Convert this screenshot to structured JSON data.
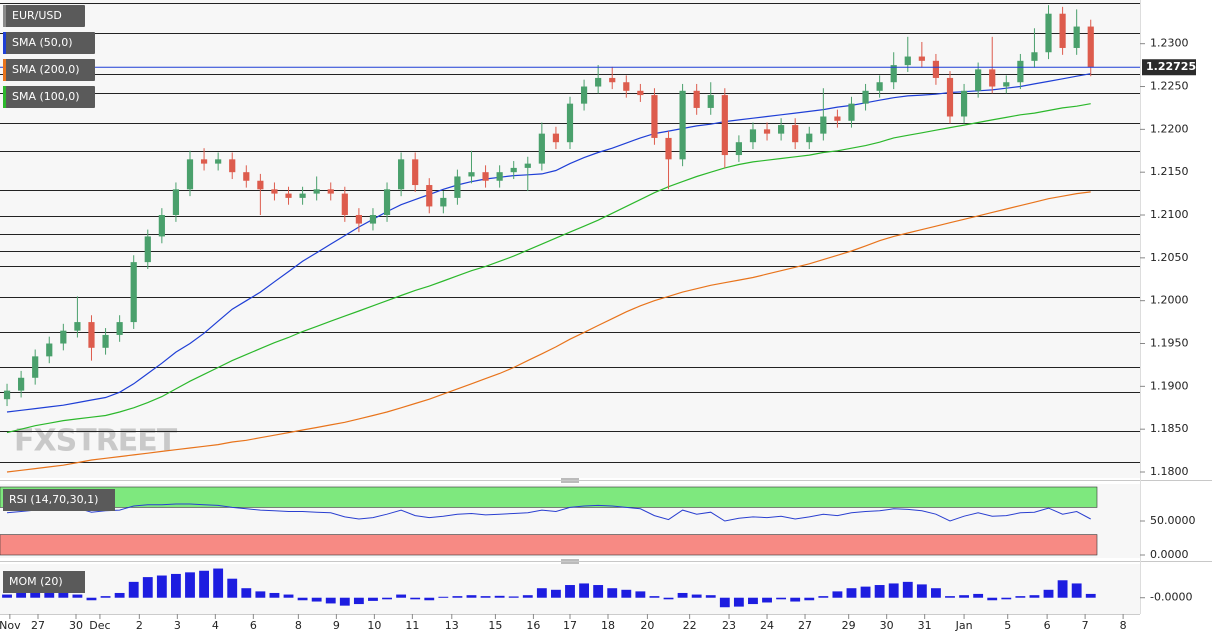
{
  "chart_data": [
    {
      "type": "candlestick",
      "title": "EUR/USD",
      "watermark": "FXSTREET",
      "up_color": "#4aa06c",
      "down_color": "#dd5c4d",
      "open": [
        1.1885,
        1.1895,
        1.191,
        1.1935,
        1.195,
        1.1965,
        1.1975,
        1.1945,
        1.196,
        1.1975,
        1.2045,
        1.2075,
        1.21,
        1.213,
        1.2165,
        1.216,
        1.2165,
        1.215,
        1.214,
        1.213,
        1.2125,
        1.212,
        1.2125,
        1.213,
        1.2125,
        1.21,
        1.209,
        1.21,
        1.213,
        1.2165,
        1.2135,
        1.211,
        1.212,
        1.2145,
        1.215,
        1.214,
        1.215,
        1.2155,
        1.216,
        1.2195,
        1.2185,
        1.223,
        1.225,
        1.226,
        1.2255,
        1.2245,
        1.224,
        1.219,
        1.2165,
        1.2245,
        1.2225,
        1.224,
        1.217,
        1.2185,
        1.22,
        1.2195,
        1.2205,
        1.2185,
        1.2195,
        1.2215,
        1.221,
        1.223,
        1.2245,
        1.2255,
        1.2275,
        1.2285,
        1.228,
        1.226,
        1.2215,
        1.2245,
        1.227,
        1.225,
        1.2255,
        1.228,
        1.229,
        1.2335,
        1.2295,
        1.232
      ],
      "high": [
        1.1903,
        1.1918,
        1.1943,
        1.1958,
        1.1973,
        1.2005,
        1.1983,
        1.1968,
        1.1983,
        1.2053,
        1.2083,
        1.2108,
        1.2138,
        1.2175,
        1.2178,
        1.2173,
        1.2173,
        1.2158,
        1.2148,
        1.2138,
        1.2133,
        1.2133,
        1.2145,
        1.2138,
        1.2133,
        1.2108,
        1.2108,
        1.2138,
        1.2173,
        1.2173,
        1.2143,
        1.2128,
        1.2153,
        1.2175,
        1.2158,
        1.2158,
        1.2163,
        1.2168,
        1.2208,
        1.2203,
        1.2238,
        1.2258,
        1.2275,
        1.2273,
        1.2263,
        1.2253,
        1.2248,
        1.2198,
        1.2253,
        1.2253,
        1.2255,
        1.2248,
        1.2193,
        1.2208,
        1.2208,
        1.2213,
        1.2213,
        1.2203,
        1.2248,
        1.2223,
        1.2238,
        1.2253,
        1.2263,
        1.229,
        1.2308,
        1.2302,
        1.2288,
        1.2268,
        1.2253,
        1.2278,
        1.2308,
        1.2263,
        1.2288,
        1.2318,
        1.2345,
        1.2343,
        1.234,
        1.2328
      ],
      "low": [
        1.1877,
        1.1887,
        1.1902,
        1.1927,
        1.1942,
        1.1957,
        1.193,
        1.1937,
        1.1952,
        1.1967,
        1.2037,
        1.2067,
        1.2092,
        1.2122,
        1.2152,
        1.2152,
        1.2142,
        1.2132,
        1.21,
        1.2117,
        1.2112,
        1.2112,
        1.2117,
        1.2117,
        1.2092,
        1.208,
        1.2082,
        1.2092,
        1.2122,
        1.2127,
        1.2102,
        1.2102,
        1.2112,
        1.2137,
        1.2132,
        1.2132,
        1.2142,
        1.2128,
        1.2152,
        1.2177,
        1.2177,
        1.2222,
        1.2242,
        1.2247,
        1.2237,
        1.2232,
        1.2182,
        1.213,
        1.2157,
        1.2217,
        1.2217,
        1.2155,
        1.2162,
        1.2177,
        1.2187,
        1.2187,
        1.2177,
        1.2177,
        1.2187,
        1.2202,
        1.2202,
        1.2222,
        1.2237,
        1.2247,
        1.2267,
        1.2272,
        1.2252,
        1.2207,
        1.2207,
        1.2237,
        1.2242,
        1.2242,
        1.2247,
        1.2272,
        1.2282,
        1.2287,
        1.2287,
        1.2262
      ],
      "close": [
        1.1895,
        1.191,
        1.1935,
        1.195,
        1.1965,
        1.1975,
        1.1945,
        1.196,
        1.1975,
        1.2045,
        1.2075,
        1.21,
        1.213,
        1.2165,
        1.216,
        1.2165,
        1.215,
        1.214,
        1.213,
        1.2125,
        1.212,
        1.2125,
        1.213,
        1.2125,
        1.21,
        1.209,
        1.21,
        1.213,
        1.2165,
        1.2135,
        1.211,
        1.212,
        1.2145,
        1.215,
        1.214,
        1.215,
        1.2155,
        1.216,
        1.2195,
        1.2185,
        1.223,
        1.225,
        1.226,
        1.2255,
        1.2245,
        1.224,
        1.219,
        1.2165,
        1.2245,
        1.2225,
        1.224,
        1.217,
        1.2185,
        1.22,
        1.2195,
        1.2205,
        1.2185,
        1.2195,
        1.2215,
        1.221,
        1.223,
        1.2245,
        1.2255,
        1.2275,
        1.2285,
        1.228,
        1.226,
        1.2215,
        1.2245,
        1.227,
        1.225,
        1.2255,
        1.228,
        1.229,
        1.2335,
        1.2295,
        1.232,
        1.22725
      ],
      "series": [
        {
          "name": "SMA (50,0)",
          "color": "#1f3fd6",
          "values": [
            1.187,
            1.1872,
            1.1874,
            1.1876,
            1.1878,
            1.1881,
            1.1884,
            1.1887,
            1.1893,
            1.1903,
            1.1915,
            1.1927,
            1.194,
            1.195,
            1.1962,
            1.1976,
            1.199,
            1.2,
            1.201,
            1.2022,
            1.2034,
            1.2046,
            1.2056,
            1.2066,
            1.2076,
            1.2086,
            1.2095,
            1.2104,
            1.2112,
            1.2118,
            1.2124,
            1.213,
            1.2135,
            1.2139,
            1.2142,
            1.2144,
            1.2146,
            1.2147,
            1.2148,
            1.2152,
            1.216,
            1.2167,
            1.2173,
            1.2178,
            1.2184,
            1.219,
            1.2195,
            1.2198,
            1.2201,
            1.2204,
            1.2206,
            1.2209,
            1.2211,
            1.2213,
            1.2215,
            1.2217,
            1.2219,
            1.2221,
            1.2223,
            1.2226,
            1.2228,
            1.2231,
            1.2234,
            1.2237,
            1.2239,
            1.224,
            1.2241,
            1.2243,
            1.2244,
            1.2245,
            1.2246,
            1.2248,
            1.225,
            1.2253,
            1.2256,
            1.2259,
            1.2262,
            1.2265
          ]
        },
        {
          "name": "SMA (200,0)",
          "color": "#e8741c",
          "values": [
            1.18,
            1.1802,
            1.1804,
            1.1806,
            1.1808,
            1.1811,
            1.1814,
            1.1816,
            1.1818,
            1.182,
            1.1822,
            1.1824,
            1.1826,
            1.1828,
            1.183,
            1.1832,
            1.1835,
            1.1837,
            1.184,
            1.1843,
            1.1846,
            1.1849,
            1.1852,
            1.1855,
            1.1858,
            1.1862,
            1.1866,
            1.187,
            1.1875,
            1.188,
            1.1885,
            1.1891,
            1.1897,
            1.1903,
            1.1909,
            1.1915,
            1.1922,
            1.193,
            1.1938,
            1.1946,
            1.1955,
            1.1963,
            1.1971,
            1.1979,
            1.1987,
            1.1994,
            1.2,
            1.2005,
            1.201,
            1.2014,
            1.2018,
            1.2021,
            1.2024,
            1.2027,
            1.2031,
            1.2035,
            1.2039,
            1.2043,
            1.2048,
            1.2053,
            1.2058,
            1.2064,
            1.207,
            1.2075,
            1.2079,
            1.2083,
            1.2087,
            1.2091,
            1.2095,
            1.2099,
            1.2103,
            1.2107,
            1.2111,
            1.2115,
            1.2119,
            1.2122,
            1.2125,
            1.2127
          ]
        },
        {
          "name": "SMA (100,0)",
          "color": "#2cb82c",
          "values": [
            1.1846,
            1.185,
            1.1854,
            1.1857,
            1.186,
            1.1862,
            1.1864,
            1.1866,
            1.187,
            1.1875,
            1.1881,
            1.1888,
            1.1897,
            1.1906,
            1.1914,
            1.1922,
            1.193,
            1.1937,
            1.1944,
            1.1951,
            1.1957,
            1.1964,
            1.197,
            1.1976,
            1.1982,
            1.1988,
            1.1994,
            1.2,
            1.2006,
            1.2012,
            1.2017,
            1.2023,
            1.2029,
            1.2035,
            1.204,
            1.2046,
            1.2052,
            1.2059,
            1.2066,
            1.2073,
            1.208,
            1.2087,
            1.2094,
            1.2102,
            1.211,
            1.2118,
            1.2126,
            1.2133,
            1.2139,
            1.2145,
            1.215,
            1.2155,
            1.2159,
            1.2162,
            1.2164,
            1.2166,
            1.2168,
            1.217,
            1.2173,
            1.2175,
            1.2178,
            1.2181,
            1.2185,
            1.219,
            1.2193,
            1.2196,
            1.2199,
            1.2202,
            1.2205,
            1.2208,
            1.2211,
            1.2214,
            1.2217,
            1.2219,
            1.2222,
            1.2225,
            1.2227,
            1.223
          ]
        }
      ],
      "levels": [
        1.2348,
        1.2312,
        1.2265,
        1.2242,
        1.2207,
        1.2175,
        1.2129,
        1.2099,
        1.2078,
        1.2058,
        1.2041,
        1.2004,
        1.1964,
        1.1923,
        1.1893,
        1.1848,
        1.1812
      ],
      "last_price": 1.22725,
      "xlim": [
        -0.5,
        80.5
      ],
      "xticks": [
        {
          "value": 0.2,
          "label": "Nov"
        },
        {
          "value": 2.2,
          "label": "27"
        },
        {
          "value": 4.9,
          "label": "30"
        },
        {
          "value": 6.6,
          "label": "Dec"
        },
        {
          "value": 9.4,
          "label": "2"
        },
        {
          "value": 12.1,
          "label": "3"
        },
        {
          "value": 14.8,
          "label": "4"
        },
        {
          "value": 17.5,
          "label": "6"
        },
        {
          "value": 20.7,
          "label": "8"
        },
        {
          "value": 23.4,
          "label": "9"
        },
        {
          "value": 26.1,
          "label": "10"
        },
        {
          "value": 28.8,
          "label": "11"
        },
        {
          "value": 31.6,
          "label": "13"
        },
        {
          "value": 34.7,
          "label": "15"
        },
        {
          "value": 37.4,
          "label": "16"
        },
        {
          "value": 40.0,
          "label": "17"
        },
        {
          "value": 42.7,
          "label": "18"
        },
        {
          "value": 45.5,
          "label": "20"
        },
        {
          "value": 48.5,
          "label": "22"
        },
        {
          "value": 51.3,
          "label": "23"
        },
        {
          "value": 54.0,
          "label": "24"
        },
        {
          "value": 56.7,
          "label": "27"
        },
        {
          "value": 59.8,
          "label": "29"
        },
        {
          "value": 62.5,
          "label": "30"
        },
        {
          "value": 65.2,
          "label": "31"
        },
        {
          "value": 68.0,
          "label": "Jan"
        },
        {
          "value": 71.1,
          "label": "5"
        },
        {
          "value": 73.9,
          "label": "6"
        },
        {
          "value": 76.6,
          "label": "7"
        },
        {
          "value": 79.3,
          "label": "8"
        }
      ],
      "ylim": [
        1.1793,
        1.2351
      ],
      "yticks": [
        {
          "value": 1.18,
          "label": "1.1800"
        },
        {
          "value": 1.185,
          "label": "1.1850"
        },
        {
          "value": 1.19,
          "label": "1.1900"
        },
        {
          "value": 1.195,
          "label": "1.1950"
        },
        {
          "value": 1.2,
          "label": "1.2000"
        },
        {
          "value": 1.205,
          "label": "1.2050"
        },
        {
          "value": 1.21,
          "label": "1.2100"
        },
        {
          "value": 1.215,
          "label": "1.2150"
        },
        {
          "value": 1.22,
          "label": "1.2200"
        },
        {
          "value": 1.225,
          "label": "1.2250"
        },
        {
          "value": 1.23,
          "label": "1.2300"
        }
      ]
    },
    {
      "type": "rsi",
      "title": "RSI (14,70,30,1)",
      "color": "#2a3fd0",
      "values": [
        62,
        64,
        66,
        67,
        68,
        69,
        63,
        65,
        66,
        72,
        74,
        74,
        75,
        75,
        74,
        73,
        70,
        68,
        66,
        65,
        64,
        64,
        63,
        62,
        56,
        53,
        55,
        60,
        66,
        58,
        55,
        57,
        60,
        61,
        59,
        60,
        61,
        62,
        66,
        64,
        70,
        72,
        73,
        72,
        70,
        68,
        58,
        52,
        66,
        60,
        63,
        50,
        54,
        56,
        55,
        57,
        53,
        56,
        60,
        58,
        62,
        64,
        65,
        68,
        67,
        65,
        60,
        50,
        57,
        62,
        57,
        58,
        62,
        63,
        69,
        60,
        64,
        53
      ],
      "upper_band": [
        70,
        100
      ],
      "lower_band": [
        0,
        30
      ],
      "upper_color": "#7ee87e",
      "lower_color": "#f78a84",
      "ylim": [
        0,
        100
      ],
      "yticks": [
        {
          "value": 50,
          "label": "50.0000"
        },
        {
          "value": 0,
          "label": "0.0000"
        }
      ]
    },
    {
      "type": "momentum",
      "title": "MOM (20)",
      "color": "#1d1de0",
      "values": [
        0.001,
        0.0015,
        0.002,
        0.002,
        0.0015,
        0.001,
        -0.0008,
        0.0005,
        0.0015,
        0.005,
        0.0065,
        0.007,
        0.0075,
        0.008,
        0.0085,
        0.0092,
        0.006,
        0.003,
        0.002,
        0.0015,
        0.001,
        -0.0008,
        -0.0012,
        -0.0018,
        -0.0025,
        -0.002,
        -0.001,
        -0.0005,
        0.001,
        -0.0005,
        -0.0008,
        0.0003,
        0.0005,
        0.0008,
        0.0005,
        0.0006,
        0.0004,
        0.0008,
        0.003,
        0.0025,
        0.004,
        0.0045,
        0.004,
        0.003,
        0.0025,
        0.002,
        0.0005,
        -0.0005,
        0.0015,
        0.001,
        0.0008,
        -0.003,
        -0.0028,
        -0.002,
        -0.0015,
        -0.0005,
        -0.0012,
        -0.0008,
        0.0005,
        0.002,
        0.003,
        0.0035,
        0.004,
        0.0045,
        0.005,
        0.0042,
        0.003,
        0.0005,
        0.0008,
        0.0012,
        -0.0008,
        -0.0005,
        0.0005,
        0.0008,
        0.0025,
        0.0055,
        0.0045,
        0.0012
      ],
      "ylim": [
        -0.0045,
        0.01
      ],
      "yticks": [
        {
          "value": 0,
          "label": "-0.0000"
        }
      ]
    }
  ]
}
